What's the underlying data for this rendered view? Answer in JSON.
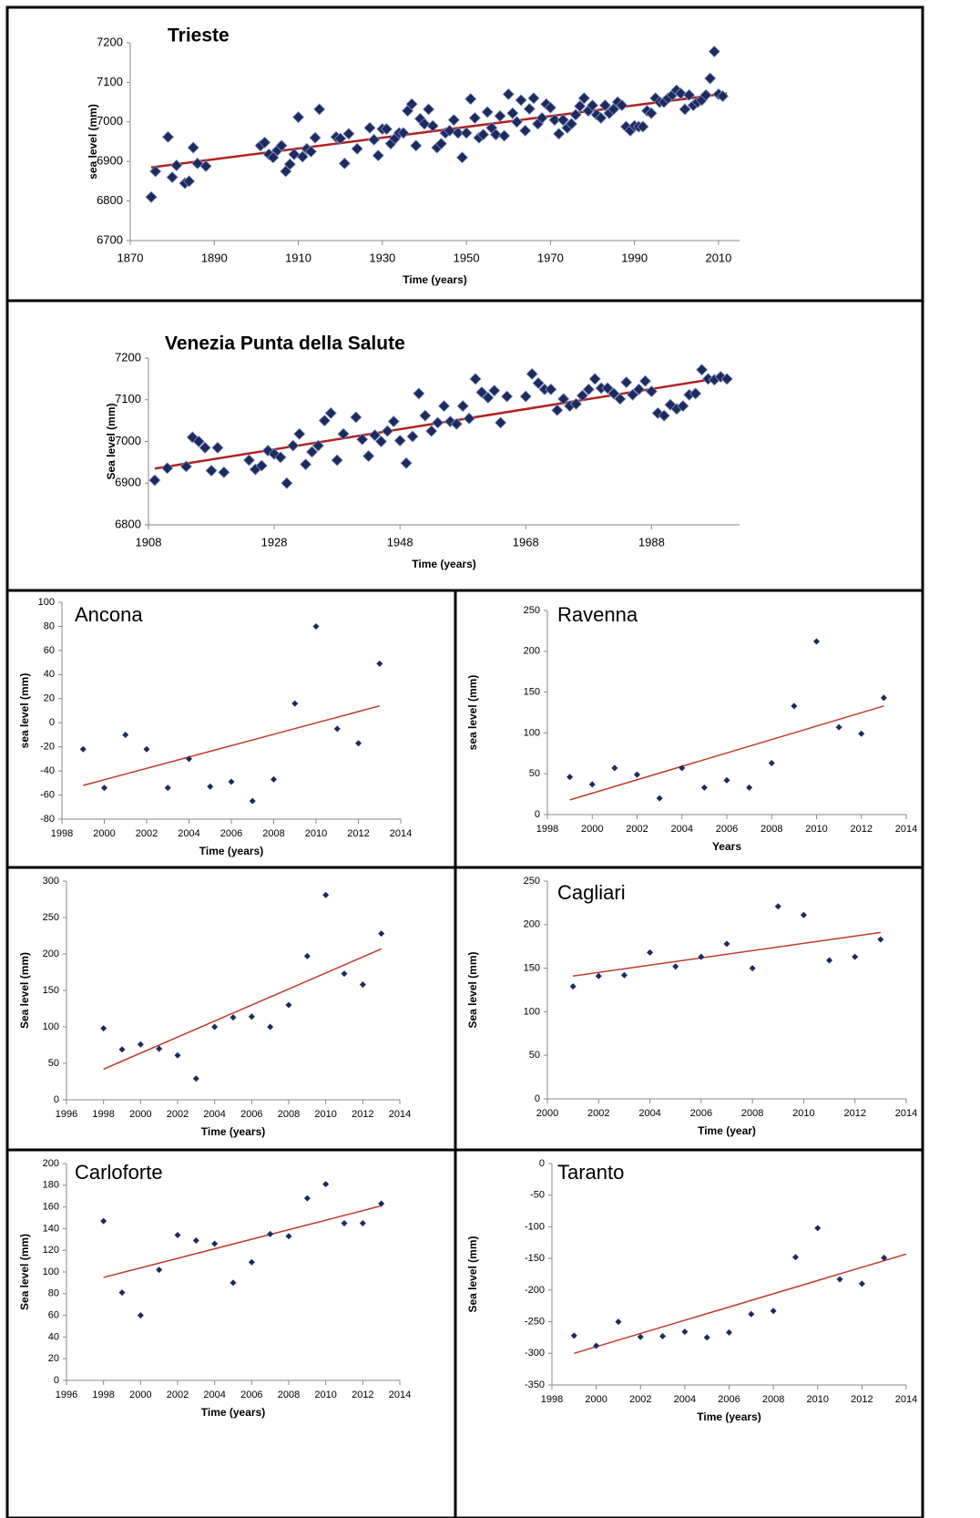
{
  "chart_data": [
    {
      "type": "scatter",
      "title": "Trieste",
      "xlabel": "Time (years)",
      "ylabel": "sea level (mm)",
      "color": "#1c2a5e",
      "x": [
        1875,
        1876,
        1879,
        1880,
        1881,
        1883,
        1884,
        1885,
        1886,
        1888,
        1901,
        1902,
        1903,
        1904,
        1905,
        1906,
        1907,
        1908,
        1909,
        1910,
        1911,
        1912,
        1913,
        1914,
        1915,
        1919,
        1920,
        1921,
        1922,
        1924,
        1927,
        1928,
        1929,
        1930,
        1931,
        1932,
        1933,
        1934,
        1935,
        1936,
        1937,
        1938,
        1939,
        1940,
        1941,
        1942,
        1943,
        1944,
        1945,
        1946,
        1947,
        1948,
        1949,
        1950,
        1951,
        1952,
        1953,
        1954,
        1955,
        1956,
        1957,
        1958,
        1959,
        1960,
        1961,
        1962,
        1963,
        1964,
        1965,
        1966,
        1967,
        1968,
        1969,
        1970,
        1971,
        1972,
        1973,
        1974,
        1975,
        1976,
        1977,
        1978,
        1979,
        1980,
        1981,
        1982,
        1983,
        1984,
        1985,
        1986,
        1987,
        1988,
        1989,
        1990,
        1991,
        1992,
        1993,
        1994,
        1995,
        1996,
        1997,
        1998,
        1999,
        2000,
        2001,
        2002,
        2003,
        2004,
        2005,
        2006,
        2007,
        2008,
        2009,
        2010,
        2011
      ],
      "values": [
        6810,
        6875,
        6962,
        6860,
        6890,
        6845,
        6850,
        6935,
        6895,
        6888,
        6940,
        6948,
        6918,
        6910,
        6928,
        6940,
        6875,
        6893,
        6918,
        7012,
        6912,
        6932,
        6925,
        6960,
        7032,
        6962,
        6958,
        6895,
        6970,
        6932,
        6985,
        6955,
        6915,
        6982,
        6982,
        6945,
        6958,
        6972,
        6972,
        7028,
        7045,
        6940,
        7008,
        6995,
        7032,
        6990,
        6935,
        6945,
        6972,
        6978,
        7005,
        6972,
        6910,
        6972,
        7058,
        7010,
        6960,
        6968,
        7025,
        6985,
        6968,
        7015,
        6965,
        7070,
        7022,
        7000,
        7055,
        6978,
        7033,
        7060,
        6995,
        7010,
        7045,
        7036,
        7005,
        6970,
        7005,
        6985,
        6995,
        7018,
        7040,
        7060,
        7028,
        7042,
        7018,
        7010,
        7042,
        7022,
        7032,
        7050,
        7042,
        6988,
        6978,
        6990,
        6988,
        6988,
        7028,
        7022,
        7060,
        7050,
        7050,
        7060,
        7068,
        7080,
        7072,
        7032,
        7068,
        7042,
        7050,
        7055,
        7068,
        7110,
        7178,
        7070,
        7065
      ],
      "trend": {
        "x": [
          1875,
          2012
        ],
        "y": [
          6885,
          7072
        ],
        "color": "#b22222"
      },
      "xlim": [
        1870,
        2015
      ],
      "ylim": [
        6700,
        7200
      ],
      "xticks": [
        1870,
        1890,
        1910,
        1930,
        1950,
        1970,
        1990,
        2010
      ],
      "yticks": [
        6700,
        6800,
        6900,
        7000,
        7100,
        7200
      ]
    },
    {
      "type": "scatter",
      "title": "Venezia Punta della Salute",
      "xlabel": "Time (years)",
      "ylabel": "Sea level (mm)",
      "color": "#1c2a5e",
      "x": [
        1909,
        1911,
        1914,
        1915,
        1916,
        1917,
        1918,
        1919,
        1920,
        1924,
        1925,
        1926,
        1927,
        1928,
        1929,
        1930,
        1931,
        1932,
        1933,
        1934,
        1935,
        1936,
        1937,
        1938,
        1939,
        1941,
        1942,
        1943,
        1944,
        1945,
        1946,
        1947,
        1948,
        1949,
        1950,
        1951,
        1952,
        1953,
        1954,
        1955,
        1956,
        1957,
        1958,
        1959,
        1960,
        1961,
        1962,
        1963,
        1964,
        1965,
        1968,
        1969,
        1970,
        1971,
        1972,
        1973,
        1974,
        1975,
        1976,
        1977,
        1978,
        1979,
        1980,
        1981,
        1982,
        1983,
        1984,
        1985,
        1986,
        1987,
        1988,
        1989,
        1990,
        1991,
        1992,
        1993,
        1994,
        1995,
        1996,
        1997,
        1998,
        1999,
        2000
      ],
      "values": [
        6907,
        6936,
        6940,
        7010,
        7000,
        6985,
        6930,
        6985,
        6926,
        6955,
        6933,
        6942,
        6978,
        6970,
        6962,
        6900,
        6990,
        7018,
        6945,
        6975,
        6990,
        7050,
        7068,
        6955,
        7018,
        7058,
        7005,
        6965,
        7015,
        7000,
        7025,
        7048,
        7002,
        6948,
        7012,
        7115,
        7062,
        7025,
        7045,
        7085,
        7048,
        7042,
        7085,
        7055,
        7150,
        7118,
        7105,
        7122,
        7045,
        7108,
        7108,
        7162,
        7140,
        7125,
        7125,
        7075,
        7102,
        7085,
        7090,
        7110,
        7125,
        7150,
        7128,
        7128,
        7115,
        7102,
        7142,
        7112,
        7125,
        7145,
        7120,
        7068,
        7062,
        7088,
        7078,
        7085,
        7112,
        7115,
        7172,
        7150,
        7148,
        7155,
        7150
      ],
      "trend": {
        "x": [
          1909,
          2000
        ],
        "y": [
          6935,
          7155
        ],
        "color": "#b22222"
      },
      "xlim": [
        1908,
        2002
      ],
      "ylim": [
        6800,
        7200
      ],
      "xticks": [
        1908,
        1928,
        1948,
        1968,
        1988
      ],
      "yticks": [
        6800,
        6900,
        7000,
        7100,
        7200
      ]
    },
    {
      "type": "scatter",
      "title": "Ancona",
      "xlabel": "Time (years)",
      "ylabel": "sea level (mm)",
      "color": "#1c2a5e",
      "x": [
        1999,
        2000,
        2001,
        2002,
        2003,
        2004,
        2005,
        2006,
        2007,
        2008,
        2009,
        2010,
        2011,
        2012,
        2013
      ],
      "values": [
        -22,
        -54,
        -10,
        -22,
        -54,
        -30,
        -53,
        -49,
        -65,
        -47,
        16,
        80,
        -5,
        -17,
        49
      ],
      "trend": {
        "x": [
          1999,
          2013
        ],
        "y": [
          -52,
          14
        ],
        "color": "#c0392b"
      },
      "xlim": [
        1998,
        2014
      ],
      "ylim": [
        -80,
        100
      ],
      "xticks": [
        1998,
        2000,
        2002,
        2004,
        2006,
        2008,
        2010,
        2012,
        2014
      ],
      "yticks": [
        -80,
        -60,
        -40,
        -20,
        0,
        20,
        40,
        60,
        80,
        100
      ]
    },
    {
      "type": "scatter",
      "title": "Ravenna",
      "xlabel": "Years",
      "ylabel": "sea level (mm)",
      "color": "#1c2a5e",
      "x": [
        1999,
        2000,
        2001,
        2002,
        2003,
        2004,
        2005,
        2006,
        2007,
        2008,
        2009,
        2010,
        2011,
        2012,
        2013
      ],
      "values": [
        46,
        37,
        57,
        49,
        20,
        57,
        33,
        42,
        33,
        63,
        133,
        212,
        107,
        99,
        143
      ],
      "trend": {
        "x": [
          1999,
          2013
        ],
        "y": [
          18,
          133
        ],
        "color": "#c0392b"
      },
      "xlim": [
        1998,
        2014
      ],
      "ylim": [
        0,
        250
      ],
      "xticks": [
        1998,
        2000,
        2002,
        2004,
        2006,
        2008,
        2010,
        2012,
        2014
      ],
      "yticks": [
        0,
        50,
        100,
        150,
        200,
        250
      ]
    },
    {
      "type": "scatter",
      "xlabel": "Time (years)",
      "ylabel": "Sea level (mm)",
      "color": "#1c2a5e",
      "x": [
        1998,
        1999,
        2000,
        2001,
        2002,
        2003,
        2004,
        2005,
        2006,
        2007,
        2008,
        2009,
        2010,
        2011,
        2012,
        2013
      ],
      "values": [
        98,
        69,
        76,
        70,
        61,
        29,
        100,
        113,
        114,
        100,
        130,
        197,
        281,
        173,
        158,
        228
      ],
      "trend": {
        "x": [
          1998,
          2013
        ],
        "y": [
          42,
          207
        ],
        "color": "#c0392b"
      },
      "xlim": [
        1996,
        2014
      ],
      "ylim": [
        0,
        300
      ],
      "xticks": [
        1996,
        1998,
        2000,
        2002,
        2004,
        2006,
        2008,
        2010,
        2012,
        2014
      ],
      "yticks": [
        0,
        50,
        100,
        150,
        200,
        250,
        300
      ]
    },
    {
      "type": "scatter",
      "title": "Cagliari",
      "xlabel": "Time (year)",
      "ylabel": "Sea level (mm)",
      "color": "#1c2a5e",
      "x": [
        2001,
        2002,
        2003,
        2004,
        2005,
        2006,
        2007,
        2008,
        2009,
        2010,
        2011,
        2012,
        2013
      ],
      "values": [
        129,
        141,
        142,
        168,
        152,
        163,
        178,
        150,
        221,
        211,
        159,
        163,
        183
      ],
      "trend": {
        "x": [
          2001,
          2013
        ],
        "y": [
          141,
          191
        ],
        "color": "#c0392b"
      },
      "xlim": [
        2000,
        2014
      ],
      "ylim": [
        0,
        250
      ],
      "xticks": [
        2000,
        2002,
        2004,
        2006,
        2008,
        2010,
        2012,
        2014
      ],
      "yticks": [
        0,
        50,
        100,
        150,
        200,
        250
      ]
    },
    {
      "type": "scatter",
      "title": "Carloforte",
      "xlabel": "Time (years)",
      "ylabel": "Sea level (mm)",
      "color": "#1c2a5e",
      "x": [
        1998,
        1999,
        2000,
        2001,
        2002,
        2003,
        2004,
        2005,
        2006,
        2007,
        2008,
        2009,
        2010,
        2011,
        2012,
        2013
      ],
      "values": [
        147,
        81,
        60,
        102,
        134,
        129,
        126,
        90,
        109,
        135,
        133,
        168,
        181,
        145,
        145,
        163
      ],
      "trend": {
        "x": [
          1998,
          2013
        ],
        "y": [
          95,
          161
        ],
        "color": "#c0392b"
      },
      "xlim": [
        1996,
        2014
      ],
      "ylim": [
        0,
        200
      ],
      "xticks": [
        1996,
        1998,
        2000,
        2002,
        2004,
        2006,
        2008,
        2010,
        2012,
        2014
      ],
      "yticks": [
        0,
        20,
        40,
        60,
        80,
        100,
        120,
        140,
        160,
        180,
        200
      ]
    },
    {
      "type": "scatter",
      "title": "Taranto",
      "xlabel": "Time (years)",
      "ylabel": "Sea level (mm)",
      "color": "#1c2a5e",
      "x": [
        1999,
        2000,
        2001,
        2002,
        2003,
        2004,
        2005,
        2006,
        2007,
        2008,
        2009,
        2010,
        2011,
        2012,
        2013
      ],
      "values": [
        -272,
        -288,
        -250,
        -274,
        -273,
        -266,
        -275,
        -267,
        -238,
        -233,
        -148,
        -102,
        -183,
        -190,
        -149
      ],
      "trend": {
        "x": [
          1999,
          2014
        ],
        "y": [
          -300,
          -143
        ],
        "color": "#c0392b"
      },
      "xlim": [
        1998,
        2014
      ],
      "ylim": [
        -350,
        0
      ],
      "xticks": [
        1998,
        2000,
        2002,
        2004,
        2006,
        2008,
        2010,
        2012,
        2014
      ],
      "yticks": [
        -350,
        -300,
        -250,
        -200,
        -150,
        -100,
        -50,
        0
      ]
    }
  ]
}
